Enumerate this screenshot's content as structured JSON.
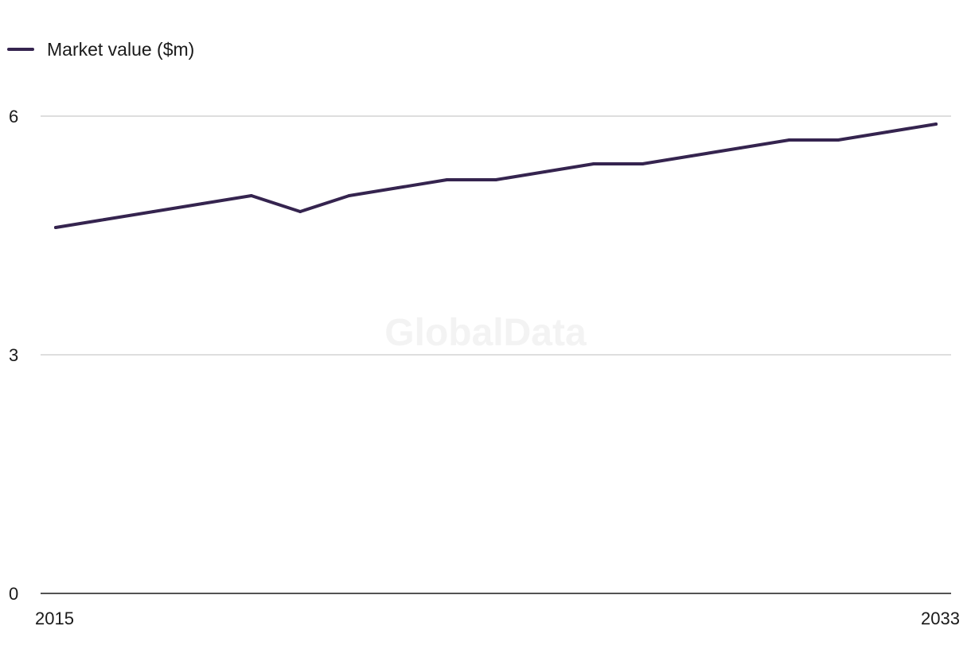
{
  "chart_data": {
    "type": "line",
    "x": [
      2015,
      2016,
      2017,
      2018,
      2019,
      2020,
      2021,
      2022,
      2023,
      2024,
      2025,
      2026,
      2027,
      2028,
      2029,
      2030,
      2031,
      2032,
      2033
    ],
    "series": [
      {
        "name": "Market value ($m)",
        "color": "#35244f",
        "values": [
          4.6,
          4.7,
          4.8,
          4.9,
          5.0,
          4.8,
          5.0,
          5.1,
          5.2,
          5.2,
          5.3,
          5.4,
          5.4,
          5.5,
          5.6,
          5.7,
          5.7,
          5.8,
          5.9
        ]
      }
    ],
    "x_tick_labels": [
      "2015",
      "2033"
    ],
    "y_ticks": [
      0,
      3,
      6
    ],
    "y_tick_labels": [
      "0",
      "3",
      "6"
    ],
    "ylim": [
      0,
      6
    ],
    "grid": true,
    "legend_position": "top-left"
  },
  "watermark": "GlobalData"
}
